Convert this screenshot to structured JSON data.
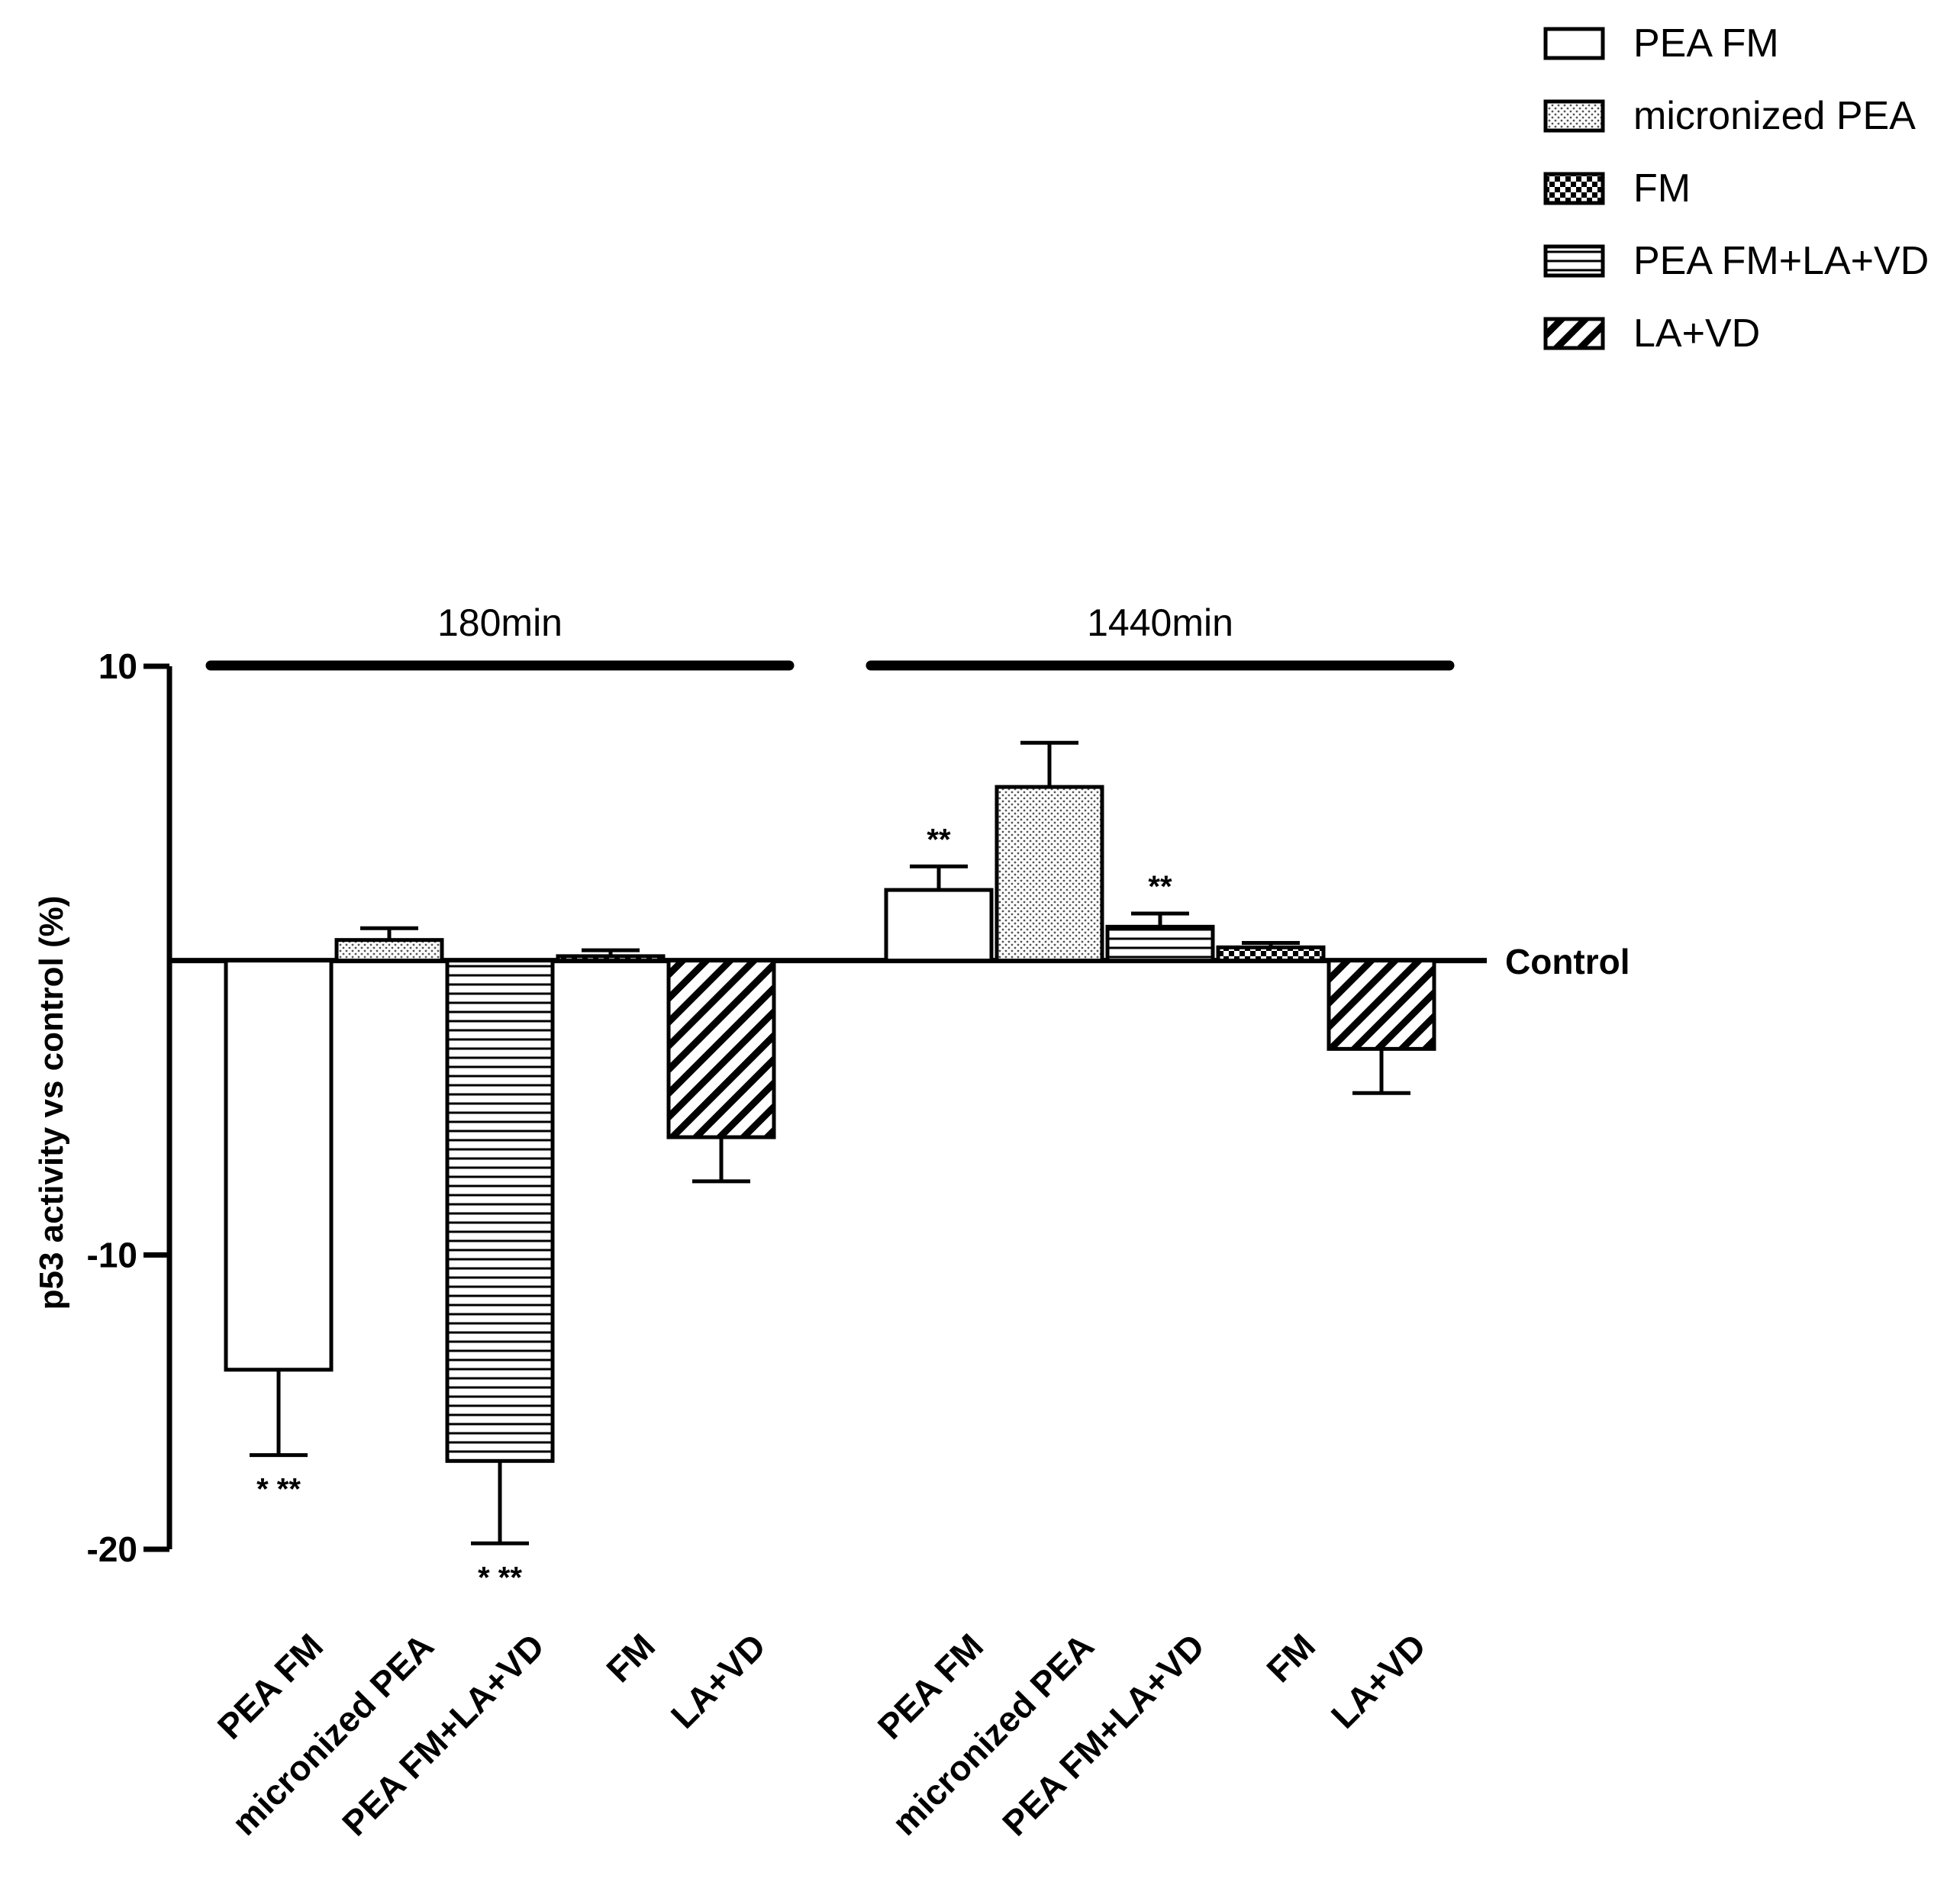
{
  "chart_data": {
    "type": "bar",
    "title": "",
    "xlabel": "",
    "ylabel": "p53 activity vs control (%)",
    "ylim": [
      -20,
      10
    ],
    "yticks": [
      10,
      -10,
      -20
    ],
    "ytick_labels": [
      "10",
      "-10",
      "-20"
    ],
    "baseline_label": "Control",
    "legend_position": "top-right",
    "groups": [
      {
        "label": "180min",
        "bars": [
          {
            "category": "PEA FM",
            "value": -13.9,
            "error": 2.9,
            "significance": "* **"
          },
          {
            "category": "micronized PEA",
            "value": 0.7,
            "error": 0.4,
            "significance": ""
          },
          {
            "category": "PEA FM+LA+VD",
            "value": -17.0,
            "error": 2.8,
            "significance": "* **"
          },
          {
            "category": "FM",
            "value": 0.15,
            "error": 0.2,
            "significance": ""
          },
          {
            "category": "LA+VD",
            "value": -6.0,
            "error": 1.5,
            "significance": ""
          }
        ]
      },
      {
        "label": "1440min",
        "bars": [
          {
            "category": "PEA FM",
            "value": 2.4,
            "error": 0.8,
            "significance": "**"
          },
          {
            "category": "micronized PEA",
            "value": 5.9,
            "error": 1.5,
            "significance": ""
          },
          {
            "category": "PEA FM+LA+VD",
            "value": 1.15,
            "error": 0.45,
            "significance": "**"
          },
          {
            "category": "FM",
            "value": 0.45,
            "error": 0.15,
            "significance": ""
          },
          {
            "category": "LA+VD",
            "value": -3.0,
            "error": 1.5,
            "significance": ""
          }
        ]
      }
    ],
    "series": [
      {
        "name": "PEA FM",
        "pattern": "white"
      },
      {
        "name": "micronized PEA",
        "pattern": "dots"
      },
      {
        "name": "FM",
        "pattern": "checker"
      },
      {
        "name": "PEA FM+LA+VD",
        "pattern": "horizontal-lines"
      },
      {
        "name": "LA+VD",
        "pattern": "diagonal-lines"
      }
    ],
    "colors": {
      "stroke": "#000000",
      "fill": "#ffffff",
      "dot": "#555555"
    }
  }
}
